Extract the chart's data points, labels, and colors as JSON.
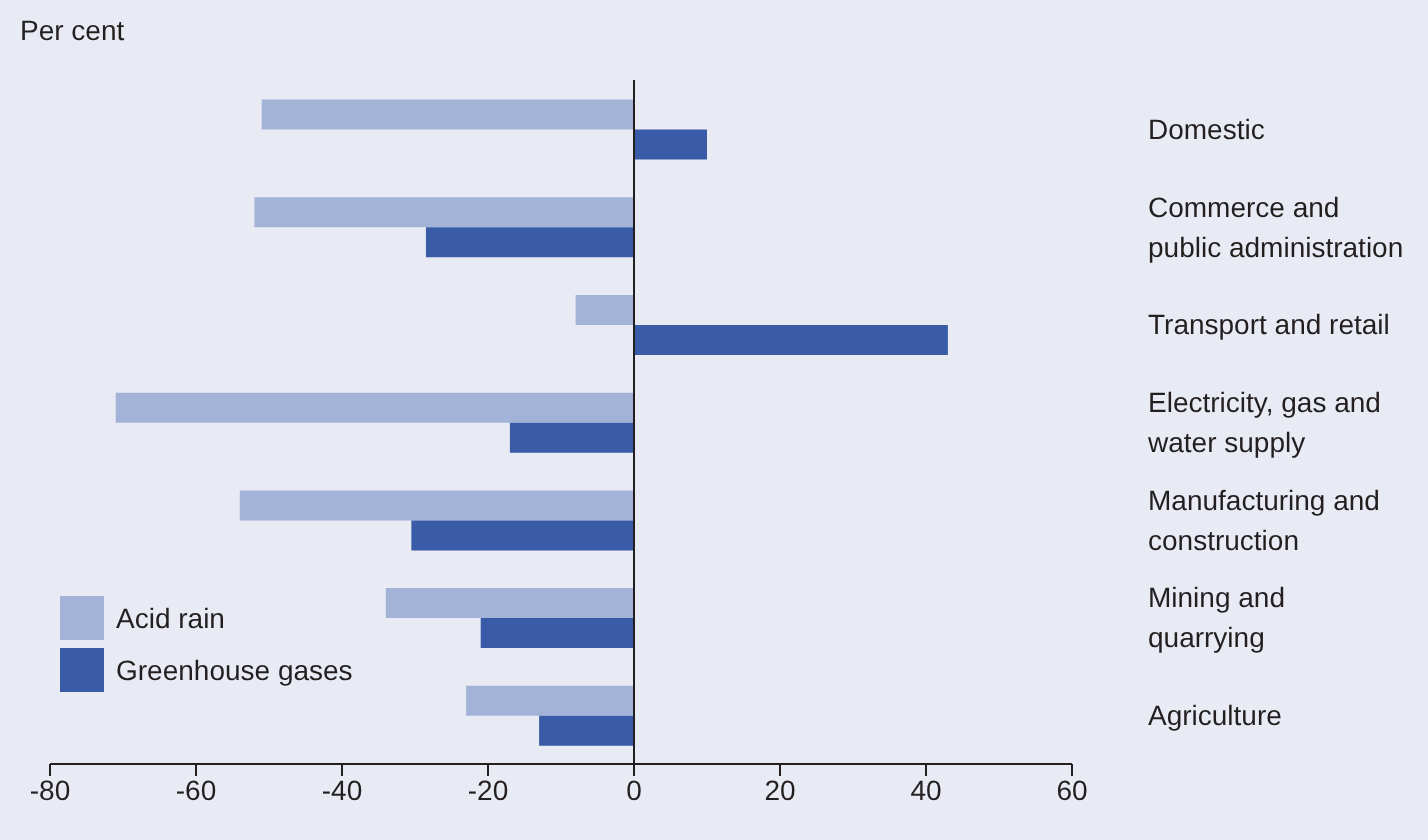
{
  "chart_data": {
    "type": "bar",
    "orientation": "horizontal",
    "annotations": [
      "Per cent"
    ],
    "categories": [
      "Domestic",
      "Commerce and\npublic administration",
      "Transport and retail",
      "Electricity, gas and\nwater supply",
      "Manufacturing and\nconstruction",
      "Mining and\nquarrying",
      "Agriculture"
    ],
    "series": [
      {
        "name": "Acid rain",
        "color": "#a3b3d8",
        "values": [
          -51,
          -52,
          -8,
          -71,
          -54,
          -34,
          -23
        ]
      },
      {
        "name": "Greenhouse gases",
        "color": "#3a5ca8",
        "values": [
          10,
          -28.5,
          43,
          -17,
          -30.5,
          -21,
          -13
        ]
      }
    ],
    "xlim": [
      -80,
      60
    ],
    "xticks": [
      -80,
      -60,
      -40,
      -20,
      0,
      20,
      40,
      60
    ],
    "legend": "bottom left"
  }
}
